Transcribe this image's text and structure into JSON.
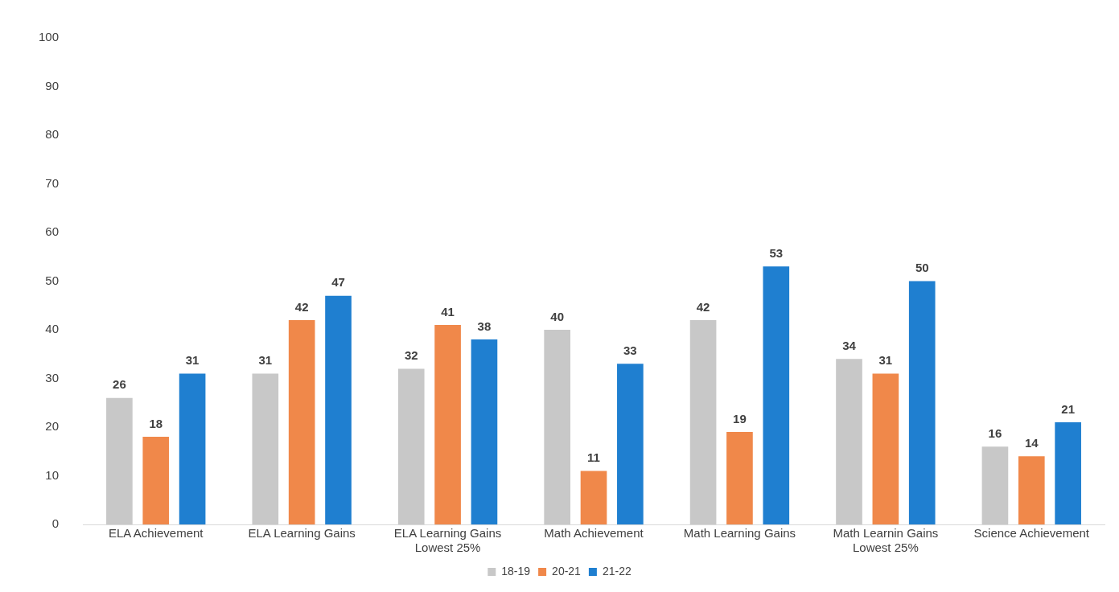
{
  "chart_data": {
    "type": "bar",
    "categories": [
      "ELA Achievement",
      "ELA Learning Gains",
      "ELA Learning Gains Lowest 25%",
      "Math Achievement",
      "Math Learning Gains",
      "Math Learnin Gains Lowest 25%",
      "Science Achievement"
    ],
    "series": [
      {
        "name": "18-19",
        "color": "#c8c8c8",
        "values": [
          26,
          31,
          32,
          40,
          42,
          34,
          16
        ]
      },
      {
        "name": "20-21",
        "color": "#f0884a",
        "values": [
          18,
          42,
          41,
          11,
          19,
          31,
          14
        ]
      },
      {
        "name": "21-22",
        "color": "#1f7fd0",
        "values": [
          31,
          47,
          38,
          33,
          53,
          50,
          21
        ]
      }
    ],
    "ylim": [
      0,
      100
    ],
    "yticks": [
      0,
      10,
      20,
      30,
      40,
      50,
      60,
      70,
      80,
      90,
      100
    ],
    "grid": false,
    "legend": "bottom",
    "data_labels": true
  }
}
